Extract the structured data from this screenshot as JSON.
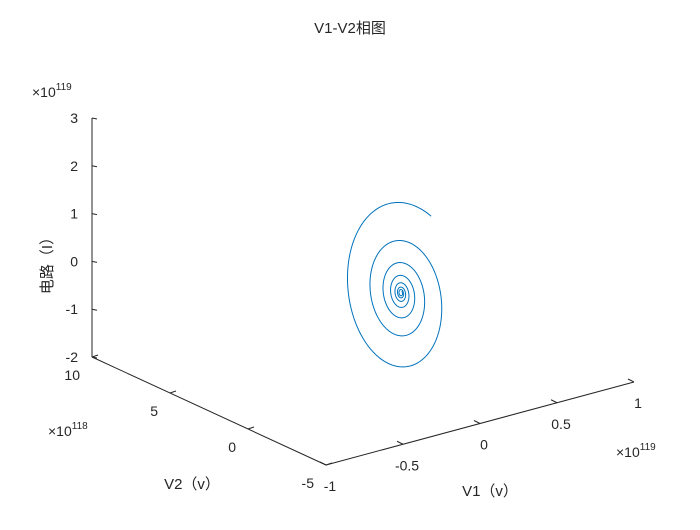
{
  "chart_data": {
    "type": "line",
    "title": "V1-V2相图",
    "xlabel": "V1（v）",
    "ylabel": "V2（v）",
    "zlabel": "电路（I）",
    "x_exponent_base": "×10",
    "x_exponent": "119",
    "y_exponent_base": "×10",
    "y_exponent": "118",
    "z_exponent_base": "×10",
    "z_exponent": "119",
    "x_ticks": [
      "-1",
      "-0.5",
      "0",
      "0.5",
      "1"
    ],
    "y_ticks": [
      "-5",
      "0",
      "5",
      "10"
    ],
    "z_ticks": [
      "-2",
      "-1",
      "0",
      "1",
      "2",
      "3"
    ],
    "xlim": [
      -1,
      1
    ],
    "ylim": [
      -5,
      10
    ],
    "zlim": [
      -2,
      3
    ],
    "grid": false,
    "line_color": "#0072BD",
    "series": [
      {
        "shape": "inward spiral",
        "start_z": 1.4,
        "turns": 7,
        "center_z": -0.7,
        "note_units": "x in units of 1e119, y in units of 1e118, z in units of 1e119"
      }
    ]
  }
}
